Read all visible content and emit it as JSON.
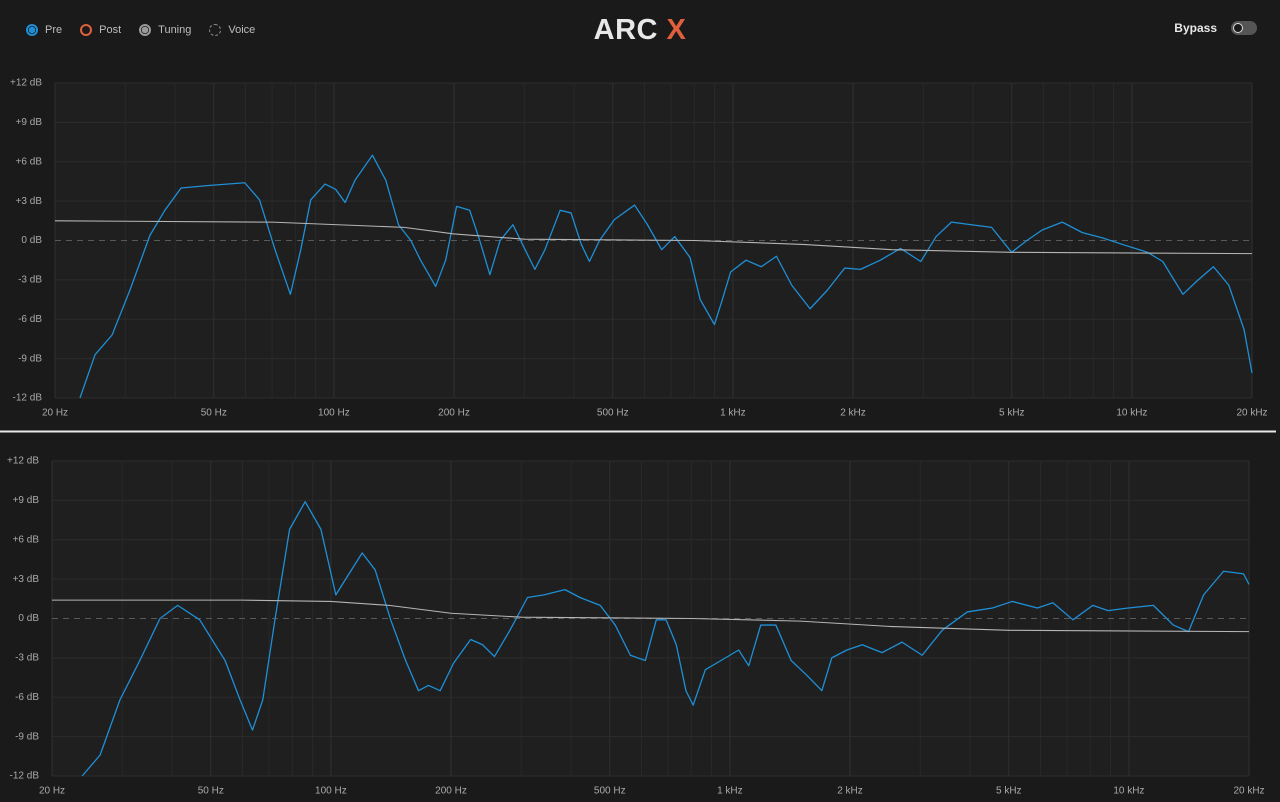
{
  "header": {
    "title": "ARC",
    "title_accent": "X",
    "legend": [
      "Pre",
      "Post",
      "Tuning",
      "Voice"
    ],
    "bypass": "Bypass"
  },
  "chart_data": [
    {
      "type": "line",
      "xscale": "log",
      "xlim": [
        20,
        20000
      ],
      "ylim": [
        -12,
        12
      ],
      "xticks": [
        {
          "value": 20,
          "label": "20 Hz"
        },
        {
          "value": 50,
          "label": "50 Hz"
        },
        {
          "value": 100,
          "label": "100 Hz"
        },
        {
          "value": 200,
          "label": "200 Hz"
        },
        {
          "value": 500,
          "label": "500 Hz"
        },
        {
          "value": 1000,
          "label": "1 kHz"
        },
        {
          "value": 2000,
          "label": "2 kHz"
        },
        {
          "value": 5000,
          "label": "5 kHz"
        },
        {
          "value": 10000,
          "label": "10 kHz"
        },
        {
          "value": 20000,
          "label": "20 kHz"
        }
      ],
      "xminor": [
        30,
        40,
        60,
        70,
        80,
        90,
        300,
        400,
        600,
        700,
        800,
        900,
        3000,
        4000,
        6000,
        7000,
        8000,
        9000
      ],
      "yticks": [
        {
          "value": 12,
          "label": "+12 dB"
        },
        {
          "value": 9,
          "label": "+9 dB"
        },
        {
          "value": 6,
          "label": "+6 dB"
        },
        {
          "value": 3,
          "label": "+3 dB"
        },
        {
          "value": 0,
          "label": "0 dB"
        },
        {
          "value": -3,
          "label": "-3 dB"
        },
        {
          "value": -6,
          "label": "-6 dB"
        },
        {
          "value": -9,
          "label": "-9 dB"
        },
        {
          "value": -12,
          "label": "-12 dB"
        }
      ],
      "grid": true,
      "series": [
        {
          "color": "#1f8fd6",
          "x": [
            23.1,
            25.2,
            27.8,
            30.8,
            34.6,
            37.7,
            41.4,
            49,
            59.8,
            65.1,
            71.2,
            77.8,
            82.6,
            87.5,
            95,
            101,
            106.7,
            113,
            124.9,
            134.9,
            145.2,
            155.9,
            164.9,
            179.9,
            190.6,
            203,
            219,
            232,
            246,
            261,
            281,
            297,
            319,
            338,
            369,
            393,
            417,
            437,
            463,
            505,
            567,
            611,
            663,
            715,
            781,
            828,
            899,
            941,
            987,
            1079,
            1178,
            1286,
            1404,
            1561,
            1723,
            1907,
            2088,
            2341,
            2630,
            2957,
            3231,
            3530,
            3963,
            4450,
            4995,
            5455,
            5958,
            6692,
            7515,
            8437,
            9472,
            10940,
            11950,
            13420,
            14660,
            16010,
            17490,
            19110,
            20000
          ],
          "values": [
            -12,
            -8.7,
            -7.2,
            -3.8,
            0.4,
            2.3,
            4.0,
            4.2,
            4.4,
            3.1,
            -0.7,
            -4.1,
            -0.7,
            3.1,
            4.3,
            3.9,
            2.9,
            4.6,
            6.5,
            4.6,
            1.2,
            0,
            -1.5,
            -3.5,
            -1.5,
            2.6,
            2.3,
            0,
            -2.6,
            0,
            1.2,
            -0.3,
            -2.2,
            -0.7,
            2.3,
            2.1,
            -0.3,
            -1.6,
            0,
            1.6,
            2.7,
            1.2,
            -0.7,
            0.3,
            -1.3,
            -4.5,
            -6.4,
            -4.5,
            -2.4,
            -1.5,
            -2.0,
            -1.2,
            -3.4,
            -5.2,
            -3.8,
            -2.1,
            -2.2,
            -1.5,
            -0.6,
            -1.6,
            0.3,
            1.4,
            1.2,
            1.0,
            -0.9,
            0,
            0.8,
            1.4,
            0.6,
            0.2,
            -0.3,
            -0.9,
            -1.6,
            -4.1,
            -3.0,
            -2.0,
            -3.4,
            -6.8,
            -10.1
          ]
        },
        {
          "color": "#b5b5b5",
          "x": [
            20,
            70,
            150,
            200,
            300,
            800,
            1500,
            2500,
            5000,
            20000
          ],
          "values": [
            1.5,
            1.4,
            1.0,
            0.5,
            0.1,
            0,
            -0.3,
            -0.7,
            -0.9,
            -1.0
          ]
        }
      ]
    },
    {
      "type": "line",
      "xscale": "log",
      "xlim": [
        20,
        20000
      ],
      "ylim": [
        -12,
        12
      ],
      "xticks": [
        {
          "value": 20,
          "label": "20 Hz"
        },
        {
          "value": 50,
          "label": "50 Hz"
        },
        {
          "value": 100,
          "label": "100 Hz"
        },
        {
          "value": 200,
          "label": "200 Hz"
        },
        {
          "value": 500,
          "label": "500 Hz"
        },
        {
          "value": 1000,
          "label": "1 kHz"
        },
        {
          "value": 2000,
          "label": "2 kHz"
        },
        {
          "value": 5000,
          "label": "5 kHz"
        },
        {
          "value": 10000,
          "label": "10 kHz"
        },
        {
          "value": 20000,
          "label": "20 kHz"
        }
      ],
      "xminor": [
        30,
        40,
        60,
        70,
        80,
        90,
        300,
        400,
        600,
        700,
        800,
        900,
        3000,
        4000,
        6000,
        7000,
        8000,
        9000
      ],
      "yticks": [
        {
          "value": 12,
          "label": "+12 dB"
        },
        {
          "value": 9,
          "label": "+9 dB"
        },
        {
          "value": 6,
          "label": "+6 dB"
        },
        {
          "value": 3,
          "label": "+3 dB"
        },
        {
          "value": 0,
          "label": "0 dB"
        },
        {
          "value": -3,
          "label": "-3 dB"
        },
        {
          "value": -6,
          "label": "-6 dB"
        },
        {
          "value": -9,
          "label": "-9 dB"
        },
        {
          "value": -12,
          "label": "-12 dB"
        }
      ],
      "grid": true,
      "series": [
        {
          "color": "#1f8fd6",
          "x": [
            23.8,
            26.4,
            29.6,
            33.2,
            37.3,
            41.3,
            46.9,
            54.3,
            59.2,
            63.6,
            67.5,
            72.4,
            78.8,
            86.2,
            94.4,
            102.9,
            108.9,
            119.8,
            129.1,
            141.2,
            153.9,
            165.8,
            175.6,
            187.9,
            203,
            224,
            240,
            257,
            281,
            311,
            342,
            386,
            421,
            473,
            516,
            563,
            614,
            654,
            692,
            734,
            776,
            809,
            868,
            950,
            1052,
            1115,
            1195,
            1304,
            1424,
            1556,
            1700,
            1800,
            1965,
            2146,
            2406,
            2700,
            3033,
            3404,
            3935,
            4550,
            5100,
            5900,
            6450,
            7240,
            8120,
            8870,
            9960,
            11520,
            12920,
            14110,
            15390,
            17270,
            19380,
            20000
          ],
          "values": [
            -12,
            -10.4,
            -6.2,
            -3.2,
            0,
            1.0,
            -0.1,
            -3.2,
            -6.2,
            -8.5,
            -6.2,
            -0.1,
            6.8,
            8.9,
            6.8,
            1.8,
            3.0,
            5.0,
            3.7,
            -0.1,
            -3.2,
            -5.5,
            -5.1,
            -5.5,
            -3.4,
            -1.6,
            -2.0,
            -2.9,
            -0.9,
            1.6,
            1.8,
            2.2,
            1.6,
            1.0,
            -0.5,
            -2.8,
            -3.2,
            -0.1,
            -0.1,
            -2.0,
            -5.5,
            -6.6,
            -3.9,
            -3.2,
            -2.4,
            -3.6,
            -0.5,
            -0.5,
            -3.2,
            -4.3,
            -5.5,
            -3.0,
            -2.4,
            -2.0,
            -2.6,
            -1.8,
            -2.8,
            -0.9,
            0.5,
            0.8,
            1.3,
            0.8,
            1.2,
            -0.1,
            1.0,
            0.6,
            0.8,
            1.0,
            -0.5,
            -1.0,
            1.8,
            3.6,
            3.4,
            2.6
          ]
        },
        {
          "color": "#b5b5b5",
          "x": [
            20,
            60,
            100,
            140,
            200,
            300,
            800,
            1500,
            2500,
            5000,
            20000
          ],
          "values": [
            1.4,
            1.4,
            1.3,
            1.0,
            0.4,
            0.1,
            0,
            -0.2,
            -0.6,
            -0.9,
            -1.0
          ]
        }
      ]
    }
  ]
}
